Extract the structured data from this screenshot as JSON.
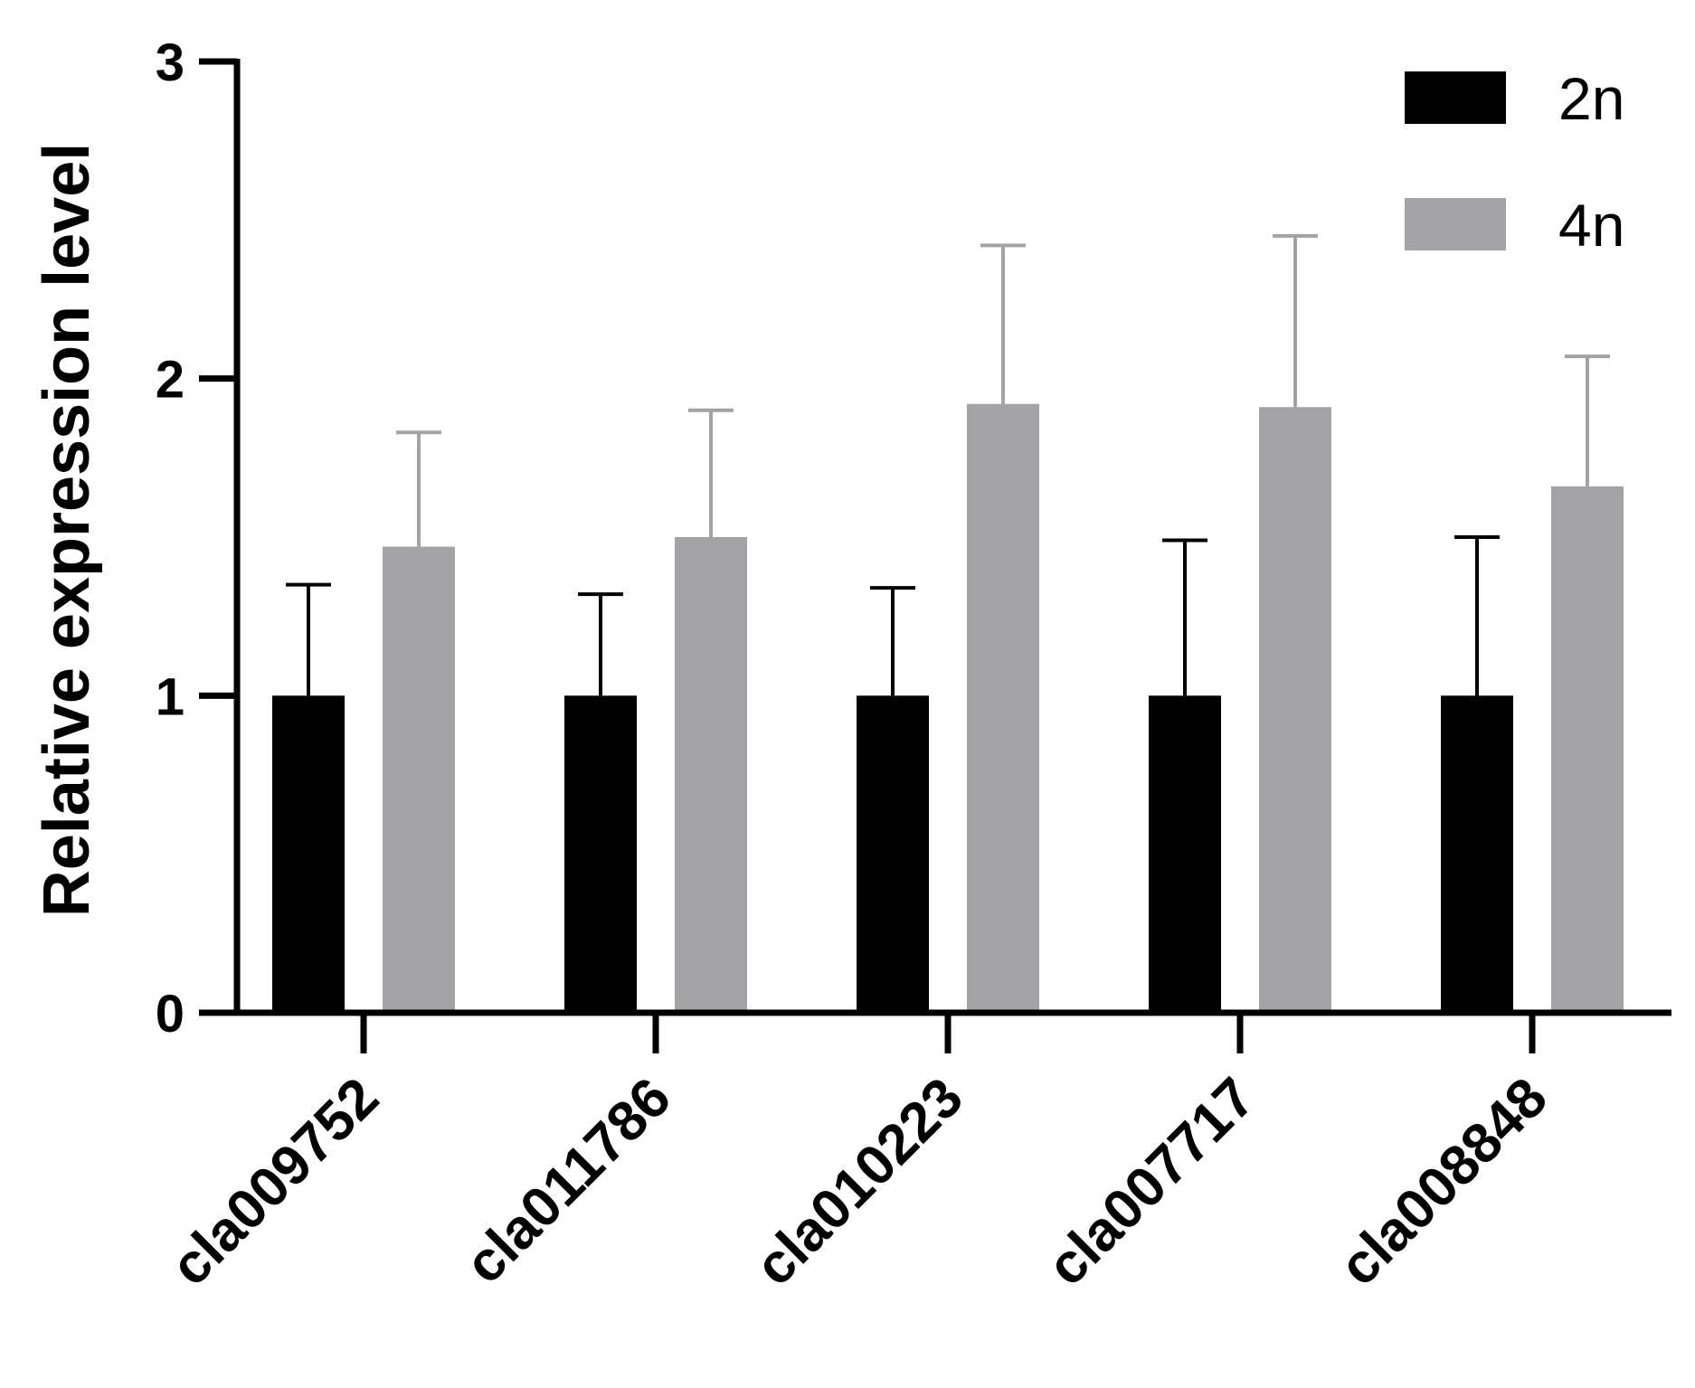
{
  "chart_data": {
    "type": "bar",
    "title": "",
    "xlabel": "",
    "ylabel": "Relative expression level",
    "ylim": [
      0,
      3
    ],
    "yticks": [
      "0",
      "1",
      "2",
      "3"
    ],
    "categories": [
      "cla009752",
      "cla011786",
      "cla010223",
      "cla007717",
      "cla008848"
    ],
    "series": [
      {
        "name": "2n",
        "color": "#000000",
        "values": [
          1.0,
          1.0,
          1.0,
          1.0,
          1.0
        ],
        "errors": [
          0.35,
          0.32,
          0.34,
          0.49,
          0.5
        ]
      },
      {
        "name": "4n",
        "color": "#a3a3a6",
        "values": [
          1.47,
          1.5,
          1.92,
          1.91,
          1.66
        ],
        "errors": [
          0.36,
          0.4,
          0.5,
          0.54,
          0.41
        ]
      }
    ],
    "legend": "top-right",
    "grid": false
  }
}
